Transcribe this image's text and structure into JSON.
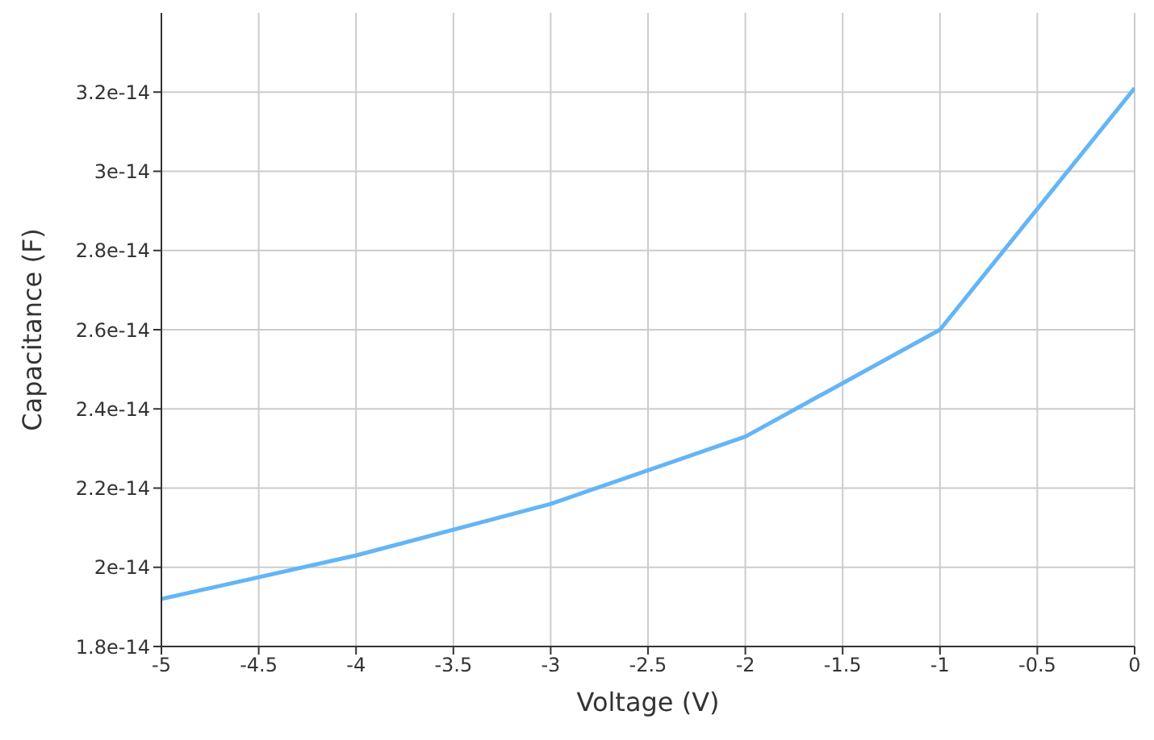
{
  "chart_data": {
    "type": "line",
    "xlabel": "Voltage (V)",
    "ylabel": "Capacitance (F)",
    "x": [
      -5,
      -4,
      -3,
      -2,
      -1,
      0
    ],
    "series": [
      {
        "color": "#64b5f6",
        "values": [
          1.92e-14,
          2.03e-14,
          2.16e-14,
          2.33e-14,
          2.6e-14,
          3.21e-14
        ]
      }
    ],
    "xlim": [
      -5,
      0
    ],
    "xticks": [
      -5,
      -4.5,
      -4,
      -3.5,
      -3,
      -2.5,
      -2,
      -1.5,
      -1,
      -0.5,
      0
    ],
    "ylim": [
      1.8e-14,
      3.4e-14
    ],
    "yticks": [
      1.8e-14,
      2e-14,
      2.2e-14,
      2.4e-14,
      2.6e-14,
      2.8e-14,
      3e-14,
      3.2e-14
    ],
    "grid": true,
    "legend": false,
    "marker": "none",
    "line_style": "solid"
  }
}
